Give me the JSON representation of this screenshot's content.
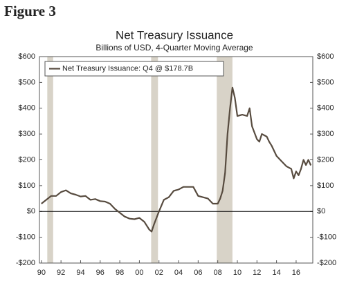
{
  "figure_label": "Figure 3",
  "chart_data": {
    "type": "line",
    "title": "Net Treasury Issuance",
    "subtitle": "Billions of USD, 4-Quarter Moving Average",
    "xlim": [
      1989.8,
      2017.7
    ],
    "ylim": [
      -200,
      600
    ],
    "xticks": [
      {
        "value": 1990,
        "label": "90"
      },
      {
        "value": 1992,
        "label": "92"
      },
      {
        "value": 1994,
        "label": "94"
      },
      {
        "value": 1996,
        "label": "96"
      },
      {
        "value": 1998,
        "label": "98"
      },
      {
        "value": 2000,
        "label": "00"
      },
      {
        "value": 2002,
        "label": "02"
      },
      {
        "value": 2004,
        "label": "04"
      },
      {
        "value": 2006,
        "label": "06"
      },
      {
        "value": 2008,
        "label": "08"
      },
      {
        "value": 2010,
        "label": "10"
      },
      {
        "value": 2012,
        "label": "12"
      },
      {
        "value": 2014,
        "label": "14"
      },
      {
        "value": 2016,
        "label": "16"
      }
    ],
    "yticks": [
      {
        "value": -200,
        "label": "-$200"
      },
      {
        "value": -100,
        "label": "-$100"
      },
      {
        "value": 0,
        "label": "$0"
      },
      {
        "value": 100,
        "label": "$100"
      },
      {
        "value": 200,
        "label": "$200"
      },
      {
        "value": 300,
        "label": "$300"
      },
      {
        "value": 400,
        "label": "$400"
      },
      {
        "value": 500,
        "label": "$500"
      },
      {
        "value": 600,
        "label": "$600"
      }
    ],
    "recessions": [
      [
        1990.6,
        1991.2
      ],
      [
        2001.2,
        2001.9
      ],
      [
        2007.9,
        2009.5
      ]
    ],
    "recession_color": "#d8d3c8",
    "legend": "top-left",
    "x": [
      1990,
      1990.5,
      1991,
      1991.5,
      1992,
      1992.5,
      1993,
      1993.5,
      1994,
      1994.5,
      1995,
      1995.5,
      1996,
      1996.5,
      1997,
      1997.5,
      1998,
      1998.5,
      1999,
      1999.5,
      2000,
      2000.5,
      2001,
      2001.25,
      2001.5,
      2002,
      2002.5,
      2003,
      2003.5,
      2004,
      2004.5,
      2005,
      2005.5,
      2006,
      2006.5,
      2007,
      2007.5,
      2008,
      2008.25,
      2008.5,
      2008.75,
      2009,
      2009.25,
      2009.5,
      2009.75,
      2010,
      2010.5,
      2011,
      2011.25,
      2011.5,
      2012,
      2012.25,
      2012.5,
      2013,
      2013.25,
      2013.5,
      2014,
      2014.5,
      2015,
      2015.5,
      2015.75,
      2016,
      2016.25,
      2016.5,
      2016.75,
      2017,
      2017.25,
      2017.5
    ],
    "series": [
      {
        "name": "Net Treasury Issuance: Q4 @ $178.7B",
        "color": "#574b3f",
        "values": [
          30,
          45,
          60,
          60,
          75,
          82,
          70,
          65,
          58,
          60,
          45,
          48,
          40,
          38,
          30,
          10,
          -5,
          -20,
          -28,
          -30,
          -25,
          -40,
          -70,
          -78,
          -50,
          0,
          45,
          55,
          80,
          85,
          95,
          95,
          95,
          60,
          55,
          50,
          30,
          30,
          50,
          80,
          150,
          300,
          400,
          480,
          440,
          370,
          375,
          370,
          400,
          330,
          280,
          270,
          300,
          290,
          270,
          255,
          215,
          195,
          175,
          165,
          128,
          155,
          140,
          165,
          200,
          180,
          200,
          178.7
        ]
      }
    ]
  }
}
